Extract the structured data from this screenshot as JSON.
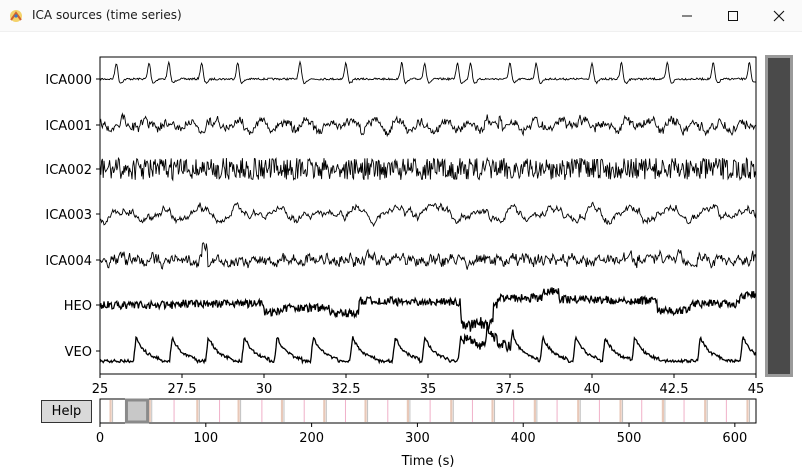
{
  "window": {
    "title": "ICA sources (time series)",
    "app_icon": "mne-logo-icon",
    "controls": [
      "minimize-icon",
      "maximize-icon",
      "close-icon"
    ]
  },
  "help_button": {
    "label": "Help"
  },
  "colors": {
    "trace": "#000000",
    "scrollbar_track": "#9a9a9a",
    "scrollbar_thumb": "#4a4a4a",
    "overview_marker": "#c0c0c0",
    "window_box_fill": "#c8c8c8",
    "window_box_border": "#8a8a8a",
    "event_line": "#e8c8b8",
    "boundary_line": "#f0b0c8"
  },
  "chart_data": [
    {
      "type": "line",
      "channels": [
        "ICA000",
        "ICA001",
        "ICA002",
        "ICA003",
        "ICA004",
        "HEO",
        "VEO"
      ],
      "xlim": [
        25,
        45
      ],
      "xticks": [
        25,
        27.5,
        30,
        32.5,
        35,
        37.5,
        40,
        42.5,
        45
      ],
      "xtick_labels": [
        "25",
        "27.5",
        "30",
        "32.5",
        "35",
        "37.5",
        "40",
        "42.5",
        "45"
      ],
      "ICA000_peaks": [
        25.5,
        26.5,
        27.1,
        28.1,
        29.2,
        31.1,
        32.5,
        34.2,
        34.9,
        35.9,
        36.3,
        37.5,
        38.3,
        40.0,
        40.9,
        42.3,
        43.7,
        44.8
      ],
      "HEO_steps": [
        [
          25,
          0
        ],
        [
          27.5,
          0.1
        ],
        [
          30,
          -0.5
        ],
        [
          30.5,
          -0.2
        ],
        [
          32.0,
          -0.6
        ],
        [
          32.9,
          0.3
        ],
        [
          34.0,
          0.2
        ],
        [
          36.0,
          -0.8
        ],
        [
          37.0,
          0.5
        ],
        [
          38.5,
          1.0
        ],
        [
          39.0,
          0.4
        ],
        [
          40.5,
          0.3
        ],
        [
          42.0,
          -0.4
        ],
        [
          43.0,
          0.1
        ],
        [
          44.5,
          0.7
        ]
      ],
      "VEO_blinks": [
        26.1,
        27.2,
        28.3,
        29.4,
        30.4,
        31.5,
        32.7,
        34.0,
        34.9,
        36.0,
        36.8,
        37.6,
        38.5,
        39.5,
        40.4,
        41.3,
        43.3,
        44.6
      ]
    },
    {
      "type": "line",
      "role": "overview",
      "xlim": [
        0,
        620
      ],
      "xticks": [
        0,
        100,
        200,
        300,
        400,
        500,
        600
      ],
      "xtick_labels": [
        "0",
        "100",
        "200",
        "300",
        "400",
        "500",
        "600"
      ],
      "xlabel": "Time (s)",
      "window_start": 25,
      "window_end": 45,
      "event_times": [
        10,
        47,
        92,
        131,
        172,
        212,
        251,
        291,
        332,
        371,
        411,
        452,
        492,
        532,
        572,
        612
      ],
      "boundary_times": [
        37,
        70,
        113,
        153,
        193,
        232,
        272,
        312,
        352,
        391,
        432,
        472,
        512,
        552,
        592
      ]
    }
  ]
}
